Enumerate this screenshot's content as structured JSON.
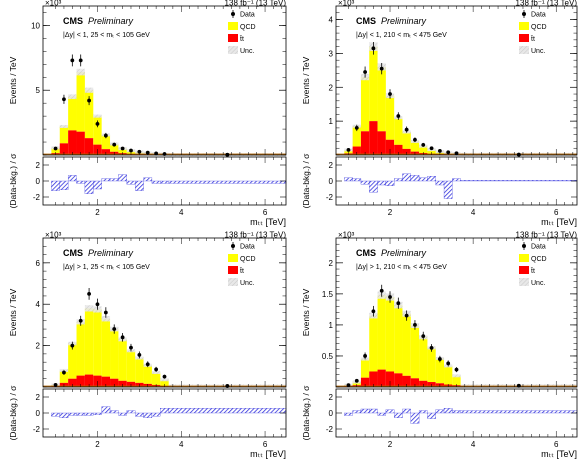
{
  "chart_data": [
    {
      "type": "bar",
      "lumi_label": "138 fb⁻¹ (13 TeV)",
      "experiment": "CMS",
      "status": "Preliminary",
      "selection": "|Δy| < 1, 25 < mₜ < 105 GeV",
      "exponent_label": "×10³",
      "ylabel": "Events / TeV",
      "ratio_ylabel": "(Data-bkg.) / σ",
      "xlabel": "mₜₜ [TeV]",
      "xlim": [
        0.7,
        6.5
      ],
      "ylim": [
        0,
        11.5
      ],
      "yticks": [
        5,
        10
      ],
      "xticks": [
        2,
        4,
        6
      ],
      "ratio_ylim": [
        -3,
        3
      ],
      "ratio_yticks": [
        -2,
        0,
        2
      ],
      "legend": [
        "Data",
        "QCD",
        "t̄t",
        "Unc."
      ],
      "legend_position": "top-right",
      "bin_edges": [
        0.9,
        1.1,
        1.3,
        1.5,
        1.7,
        1.9,
        2.1,
        2.3,
        2.5,
        2.7,
        2.9,
        3.1,
        3.3,
        3.5,
        3.7,
        6.5
      ],
      "series": [
        {
          "name": "QCD",
          "values": [
            0.4,
            1.3,
            2.6,
            4.6,
            3.7,
            2.2,
            1.1,
            0.6,
            0.35,
            0.25,
            0.18,
            0.12,
            0.08,
            0.05,
            0.01
          ]
        },
        {
          "name": "t̄t",
          "values": [
            0.15,
            0.9,
            1.9,
            1.8,
            1.3,
            0.8,
            0.45,
            0.25,
            0.15,
            0.08,
            0.05,
            0.03,
            0.02,
            0.01,
            0.01
          ]
        },
        {
          "name": "Data",
          "values": [
            0.5,
            4.3,
            7.3,
            7.3,
            4.2,
            2.4,
            1.5,
            0.8,
            0.5,
            0.35,
            0.25,
            0.18,
            0.12,
            0.08,
            0.02
          ]
        }
      ],
      "data_extra": [
        {
          "x": 5.1,
          "y": 0.02
        }
      ],
      "ratio_values": [
        -1.2,
        -1.1,
        0.7,
        -0.3,
        -1.6,
        -1.0,
        0.3,
        0.3,
        0.8,
        -0.4,
        -1.2,
        0.4,
        -0.3,
        -0.3,
        -0.3
      ]
    },
    {
      "type": "bar",
      "lumi_label": "138 fb⁻¹ (13 TeV)",
      "experiment": "CMS",
      "status": "Preliminary",
      "selection": "|Δy| < 1, 210 < mₜ < 475 GeV",
      "exponent_label": "×10³",
      "ylabel": "Events / TeV",
      "ratio_ylabel": "(Data-bkg.) / σ",
      "xlabel": "mₜₜ [TeV]",
      "xlim": [
        0.7,
        6.5
      ],
      "ylim": [
        0,
        4.4
      ],
      "yticks": [
        1,
        2,
        3,
        4
      ],
      "xticks": [
        2,
        4,
        6
      ],
      "ratio_ylim": [
        -3,
        3
      ],
      "ratio_yticks": [
        -2,
        0,
        2
      ],
      "legend": [
        "Data",
        "QCD",
        "t̄t",
        "Unc."
      ],
      "legend_position": "top-right",
      "bin_edges": [
        0.9,
        1.1,
        1.3,
        1.5,
        1.7,
        1.9,
        2.1,
        2.3,
        2.5,
        2.7,
        2.9,
        3.1,
        3.3,
        3.5,
        3.7,
        6.5
      ],
      "series": [
        {
          "name": "QCD",
          "values": [
            0.1,
            0.6,
            1.6,
            2.2,
            1.9,
            1.3,
            0.8,
            0.5,
            0.3,
            0.2,
            0.12,
            0.08,
            0.05,
            0.03,
            0.01
          ]
        },
        {
          "name": "t̄t",
          "values": [
            0.05,
            0.25,
            0.7,
            1.0,
            0.7,
            0.45,
            0.3,
            0.18,
            0.1,
            0.06,
            0.04,
            0.02,
            0.01,
            0.01,
            0.01
          ]
        },
        {
          "name": "Data",
          "values": [
            0.15,
            0.8,
            2.45,
            3.15,
            2.55,
            1.8,
            1.15,
            0.75,
            0.45,
            0.3,
            0.2,
            0.12,
            0.08,
            0.05,
            0.01
          ]
        }
      ],
      "data_extra": [
        {
          "x": 5.1,
          "y": 0.01
        }
      ],
      "ratio_values": [
        0.4,
        0.3,
        -0.4,
        -1.4,
        -0.5,
        -0.6,
        0.3,
        0.9,
        0.7,
        0.4,
        0.6,
        -0.5,
        -2.2,
        0.3,
        0.1
      ]
    },
    {
      "type": "bar",
      "lumi_label": "138 fb⁻¹ (13 TeV)",
      "experiment": "CMS",
      "status": "Preliminary",
      "selection": "|Δy| > 1, 25 < mₜ < 105 GeV",
      "exponent_label": "×10³",
      "ylabel": "Events / TeV",
      "ratio_ylabel": "(Data-bkg.) / σ",
      "xlabel": "mₜₜ [TeV]",
      "xlim": [
        0.7,
        6.5
      ],
      "ylim": [
        0,
        7.2
      ],
      "yticks": [
        2,
        4,
        6
      ],
      "xticks": [
        2,
        4,
        6
      ],
      "ratio_ylim": [
        -3,
        3
      ],
      "ratio_yticks": [
        -2,
        0,
        2
      ],
      "legend": [
        "Data",
        "QCD",
        "t̄t",
        "Unc."
      ],
      "legend_position": "top-right",
      "bin_edges": [
        0.9,
        1.1,
        1.3,
        1.5,
        1.7,
        1.9,
        2.1,
        2.3,
        2.5,
        2.7,
        2.9,
        3.1,
        3.3,
        3.5,
        3.7,
        6.5
      ],
      "series": [
        {
          "name": "QCD",
          "values": [
            0.05,
            0.6,
            1.7,
            2.6,
            3.2,
            3.2,
            2.8,
            2.4,
            2.0,
            1.5,
            1.2,
            0.9,
            0.6,
            0.3,
            0.03
          ]
        },
        {
          "name": "t̄t",
          "values": [
            0.05,
            0.2,
            0.4,
            0.55,
            0.6,
            0.55,
            0.5,
            0.4,
            0.3,
            0.25,
            0.2,
            0.15,
            0.1,
            0.05,
            0.02
          ]
        },
        {
          "name": "Data",
          "values": [
            0.1,
            0.7,
            2.0,
            3.2,
            4.5,
            4.0,
            3.6,
            2.8,
            2.4,
            1.9,
            1.55,
            1.1,
            0.85,
            0.5,
            0.05
          ]
        }
      ],
      "data_extra": [
        {
          "x": 5.1,
          "y": 0.05
        }
      ],
      "ratio_values": [
        -0.4,
        -0.6,
        -0.3,
        -0.3,
        -0.3,
        -0.2,
        0.8,
        0.3,
        -0.3,
        0.3,
        -0.4,
        -0.6,
        -0.4,
        0.6,
        0.6
      ]
    },
    {
      "type": "bar",
      "lumi_label": "138 fb⁻¹ (13 TeV)",
      "experiment": "CMS",
      "status": "Preliminary",
      "selection": "|Δy| > 1, 210 < mₜ < 475 GeV",
      "exponent_label": "×10³",
      "ylabel": "Events / TeV",
      "ratio_ylabel": "(Data-bkg.) / σ",
      "xlabel": "mₜₜ [TeV]",
      "xlim": [
        0.7,
        6.5
      ],
      "ylim": [
        0,
        2.4
      ],
      "yticks": [
        0.5,
        1,
        1.5,
        2
      ],
      "xticks": [
        2,
        4,
        6
      ],
      "ratio_ylim": [
        -3,
        3
      ],
      "ratio_yticks": [
        -2,
        0,
        2
      ],
      "legend": [
        "Data",
        "QCD",
        "t̄t",
        "Unc."
      ],
      "legend_position": "top-right",
      "bin_edges": [
        0.9,
        1.1,
        1.3,
        1.5,
        1.7,
        1.9,
        2.1,
        2.3,
        2.5,
        2.7,
        2.9,
        3.1,
        3.3,
        3.5,
        3.7,
        6.5
      ],
      "series": [
        {
          "name": "QCD",
          "values": [
            0.02,
            0.05,
            0.3,
            0.9,
            1.2,
            1.2,
            1.1,
            1.0,
            0.85,
            0.7,
            0.55,
            0.4,
            0.3,
            0.15,
            0.01
          ]
        },
        {
          "name": "t̄t",
          "values": [
            0.01,
            0.03,
            0.15,
            0.25,
            0.28,
            0.25,
            0.22,
            0.18,
            0.14,
            0.1,
            0.08,
            0.06,
            0.04,
            0.03,
            0.01
          ]
        },
        {
          "name": "Data",
          "values": [
            0.03,
            0.1,
            0.5,
            1.22,
            1.55,
            1.45,
            1.35,
            1.15,
            1.0,
            0.82,
            0.63,
            0.45,
            0.38,
            0.28,
            0.02
          ]
        }
      ],
      "data_extra": [
        {
          "x": 5.1,
          "y": 0.02
        }
      ],
      "ratio_values": [
        -0.3,
        0.3,
        0.5,
        0.5,
        -0.3,
        0.4,
        -0.6,
        0.5,
        -1.3,
        0.3,
        -0.7,
        0.4,
        0.6,
        0.3,
        0.3
      ]
    }
  ]
}
